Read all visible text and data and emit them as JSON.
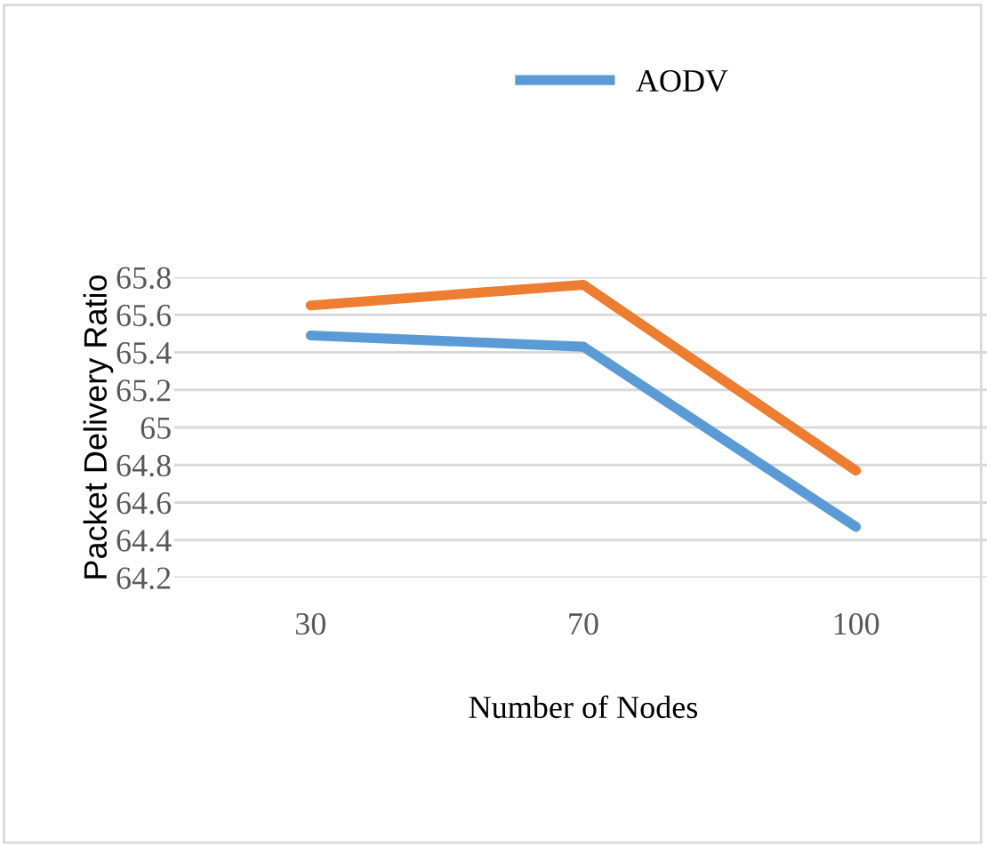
{
  "chart_data": {
    "type": "line",
    "xlabel": "Number of Nodes",
    "ylabel": "Packet Delivery Ratio",
    "categories": [
      "30",
      "70",
      "100"
    ],
    "series": [
      {
        "name": "AODV",
        "color": "#5b9bd5",
        "values": [
          65.49,
          65.43,
          64.47
        ]
      },
      {
        "color": "#ed7d31",
        "values": [
          65.65,
          65.76,
          64.77
        ]
      }
    ],
    "ylim": [
      64.2,
      65.8
    ],
    "yticks": [
      64.2,
      64.4,
      64.6,
      64.8,
      65,
      65.2,
      65.4,
      65.6,
      65.8
    ],
    "grid": "y",
    "legend": "top",
    "marker": "none",
    "line_style": "solid"
  }
}
